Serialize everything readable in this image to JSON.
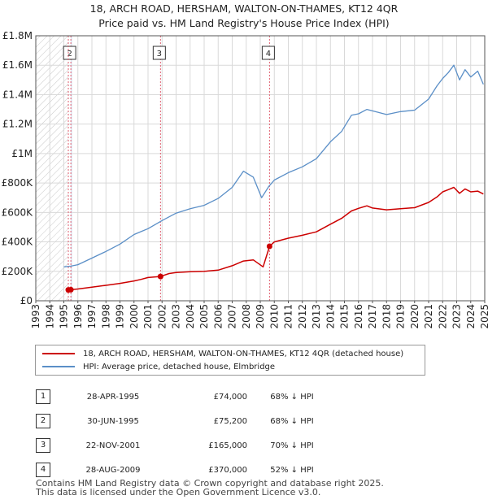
{
  "title_lines": [
    "18, ARCH ROAD, HERSHAM, WALTON-ON-THAMES, KT12 4QR",
    "Price paid vs. HM Land Registry's House Price Index (HPI)"
  ],
  "colors": {
    "property": "#cc0000",
    "hpi": "#5b8fc7",
    "sale_line": "#e06070",
    "shade": "#dde7f4",
    "grid": "#d9d9d9"
  },
  "legend": {
    "property": "18, ARCH ROAD, HERSHAM, WALTON-ON-THAMES, KT12 4QR (detached house)",
    "hpi": "HPI: Average price, detached house, Elmbridge"
  },
  "sales": [
    {
      "num": "1",
      "date": "28-APR-1995",
      "price": "£74,000",
      "hpi": "68% ↓ HPI"
    },
    {
      "num": "2",
      "date": "30-JUN-1995",
      "price": "£75,200",
      "hpi": "68% ↓ HPI"
    },
    {
      "num": "3",
      "date": "22-NOV-2001",
      "price": "£165,000",
      "hpi": "70% ↓ HPI"
    },
    {
      "num": "4",
      "date": "28-AUG-2009",
      "price": "£370,000",
      "hpi": "52% ↓ HPI"
    }
  ],
  "footer_lines": [
    "Contains HM Land Registry data © Crown copyright and database right 2025.",
    "This data is licensed under the Open Government Licence v3.0."
  ],
  "chart_data": {
    "type": "line",
    "xlim": [
      1993,
      2025
    ],
    "ylim": [
      0,
      1800000
    ],
    "y_ticks": [
      {
        "value": 0,
        "label": "£0"
      },
      {
        "value": 200000,
        "label": "£200K"
      },
      {
        "value": 400000,
        "label": "£400K"
      },
      {
        "value": 600000,
        "label": "£600K"
      },
      {
        "value": 800000,
        "label": "£800K"
      },
      {
        "value": 1000000,
        "label": "£1M"
      },
      {
        "value": 1200000,
        "label": "£1.2M"
      },
      {
        "value": 1400000,
        "label": "£1.4M"
      },
      {
        "value": 1600000,
        "label": "£1.6M"
      },
      {
        "value": 1800000,
        "label": "£1.8M"
      }
    ],
    "x_ticks": [
      "1993",
      "1994",
      "1995",
      "1996",
      "1997",
      "1998",
      "1999",
      "2000",
      "2001",
      "2002",
      "2003",
      "2004",
      "2005",
      "2006",
      "2007",
      "2008",
      "2009",
      "2010",
      "2011",
      "2012",
      "2013",
      "2014",
      "2015",
      "2016",
      "2017",
      "2018",
      "2019",
      "2020",
      "2021",
      "2022",
      "2023",
      "2024",
      "2025"
    ],
    "grid": true,
    "hatched_range": [
      1993,
      1995.32
    ],
    "series": [
      {
        "name": "18, ARCH ROAD, HERSHAM, WALTON-ON-THAMES, KT12 4QR (detached house)",
        "x": [
          1995.32,
          1995.5,
          1996,
          1997,
          1998,
          1999,
          2000,
          2000.5,
          2001,
          2001.89,
          2002.5,
          2003,
          2004,
          2005,
          2006,
          2007,
          2007.8,
          2008.5,
          2009.2,
          2009.66,
          2010,
          2011,
          2012,
          2013,
          2014,
          2014.8,
          2015.5,
          2016,
          2016.6,
          2017,
          2018,
          2019,
          2020,
          2021,
          2021.6,
          2022,
          2022.4,
          2022.8,
          2023.2,
          2023.6,
          2024,
          2024.5,
          2024.9
        ],
        "y": [
          74000,
          75200,
          80000,
          92000,
          105000,
          118000,
          135000,
          145000,
          158000,
          165000,
          185000,
          192000,
          197000,
          200000,
          208000,
          238000,
          270000,
          278000,
          230000,
          370000,
          400000,
          425000,
          445000,
          468000,
          520000,
          560000,
          610000,
          628000,
          645000,
          630000,
          618000,
          625000,
          632000,
          668000,
          705000,
          740000,
          755000,
          770000,
          730000,
          760000,
          740000,
          745000,
          725000
        ]
      },
      {
        "name": "HPI: Average price, detached house, Elmbridge",
        "x": [
          1995,
          1995.5,
          1996,
          1997,
          1998,
          1999,
          2000,
          2000.5,
          2001,
          2002,
          2003,
          2004,
          2005,
          2006,
          2007,
          2007.8,
          2008.5,
          2009.1,
          2009.6,
          2010,
          2011,
          2012,
          2013,
          2014,
          2014.8,
          2015.5,
          2016,
          2016.6,
          2017,
          2018,
          2019,
          2020,
          2021,
          2021.6,
          2022,
          2022.4,
          2022.8,
          2023.2,
          2023.6,
          2024,
          2024.5,
          2024.9
        ],
        "y": [
          230000,
          235000,
          245000,
          290000,
          335000,
          385000,
          450000,
          470000,
          490000,
          545000,
          595000,
          625000,
          648000,
          695000,
          770000,
          880000,
          840000,
          700000,
          775000,
          820000,
          870000,
          910000,
          965000,
          1080000,
          1150000,
          1260000,
          1270000,
          1300000,
          1290000,
          1265000,
          1285000,
          1295000,
          1370000,
          1460000,
          1510000,
          1550000,
          1600000,
          1500000,
          1570000,
          1520000,
          1560000,
          1470000
        ]
      }
    ],
    "sale_markers": [
      {
        "label": "1",
        "x": 1995.32,
        "y": 74000
      },
      {
        "label": "2",
        "x": 1995.5,
        "y": 75200
      },
      {
        "label": "3",
        "x": 2001.89,
        "y": 165000
      },
      {
        "label": "4",
        "x": 2009.66,
        "y": 370000
      }
    ],
    "labelled_lines": [
      "2",
      "3",
      "4"
    ]
  }
}
